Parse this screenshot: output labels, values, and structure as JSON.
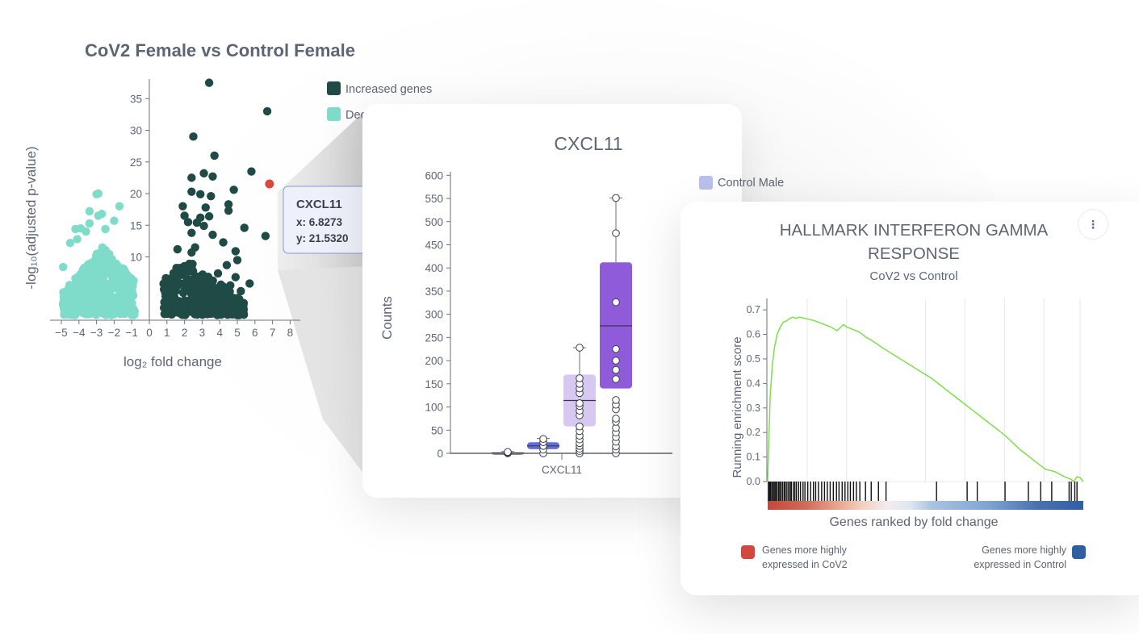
{
  "volcano": {
    "title": "CoV2 Female vs Control Female",
    "xlabel": "log₂ fold change",
    "ylabel": "-log₁₀(adjusted p-value)",
    "legend": [
      "Increased genes",
      "Decreased genes"
    ],
    "colors": {
      "increased": "#1f4a45",
      "decreased": "#7fdccb",
      "highlight": "#e0473c"
    },
    "xticks": [
      "−5",
      "−4",
      "−3",
      "−2",
      "−1",
      "0",
      "1",
      "2",
      "3",
      "4",
      "5",
      "6",
      "7",
      "8"
    ],
    "yticks": [
      "10",
      "15",
      "20",
      "25",
      "30",
      "35"
    ],
    "tooltip": {
      "gene": "CXCL11",
      "x_text": "x: 6.8273",
      "y_text": "y: 21.5320"
    },
    "highlight_point": {
      "x": 6.8273,
      "y": 21.532
    }
  },
  "boxplot": {
    "title": "CXCL11",
    "ylabel": "Counts",
    "xtick": "CXCL11",
    "legend_visible": [
      "Control Male"
    ],
    "yticks": [
      "0",
      "50",
      "100",
      "150",
      "200",
      "250",
      "300",
      "350",
      "400",
      "450",
      "500",
      "550",
      "600"
    ]
  },
  "gsea": {
    "title_line1": "HALLMARK INTERFERON GAMMA",
    "title_line2": "RESPONSE",
    "subtitle": "CoV2 vs Control",
    "ylabel": "Running enrichment score",
    "xlabel": "Genes ranked by fold change",
    "yticks": [
      "0.0",
      "0.1",
      "0.2",
      "0.3",
      "0.4",
      "0.5",
      "0.6",
      "0.7"
    ],
    "legend_left": [
      "Genes more highly",
      "expressed in CoV2"
    ],
    "legend_right": [
      "Genes more highly",
      "expressed in Control"
    ],
    "colors": {
      "cov2": "#d0483e",
      "control": "#2f5fa3",
      "curve": "#7be04a"
    },
    "menu_icon": "more-vertical-icon"
  },
  "chart_data": [
    {
      "type": "scatter",
      "title": "CoV2 Female vs Control Female",
      "xlabel": "log₂ fold change",
      "ylabel": "-log₁₀(adjusted p-value)",
      "xlim": [
        -5.5,
        8.5
      ],
      "ylim": [
        0,
        38
      ],
      "legend_position": "top-right",
      "series": [
        {
          "name": "Increased genes",
          "color": "#1f4a45",
          "points": [
            [
              3.4,
              37.5
            ],
            [
              6.7,
              33
            ],
            [
              2.5,
              29
            ],
            [
              3.7,
              26
            ],
            [
              5.8,
              23.5
            ],
            [
              2.4,
              22.5
            ],
            [
              3.1,
              23.2
            ],
            [
              3.6,
              22.7
            ],
            [
              4.8,
              20.6
            ],
            [
              2.4,
              20.3
            ],
            [
              2.9,
              19.9
            ],
            [
              6.6,
              13.3
            ],
            [
              3.5,
              19.6
            ],
            [
              3.2,
              17.8
            ],
            [
              4.5,
              17.3
            ],
            [
              2.9,
              16.2
            ],
            [
              3.4,
              16.4
            ],
            [
              2.0,
              16.5
            ],
            [
              1.9,
              18
            ],
            [
              4.5,
              18.3
            ],
            [
              2.2,
              15.5
            ],
            [
              2.7,
              15.4
            ],
            [
              3.1,
              14.9
            ],
            [
              3.6,
              13.5
            ],
            [
              5.4,
              14.6
            ],
            [
              2.4,
              13.8
            ],
            [
              4.2,
              12.3
            ],
            [
              2.6,
              11.5
            ],
            [
              1.6,
              11.2
            ],
            [
              4.9,
              10.9
            ],
            [
              2.4,
              10.7
            ],
            [
              5.0,
              9.5
            ],
            [
              4.4,
              8.7
            ],
            [
              3.9,
              7.4
            ],
            [
              4.9,
              6.8
            ],
            [
              5.7,
              5.8
            ],
            [
              4.6,
              5.5
            ],
            [
              5.2,
              4.6
            ],
            [
              3.3,
              4.9
            ],
            [
              1.5,
              6.3
            ],
            [
              1.1,
              5.6
            ],
            [
              0.9,
              4.4
            ]
          ]
        },
        {
          "name": "Decreased genes",
          "color": "#7fdccb",
          "points": [
            [
              -3.0,
              19.9
            ],
            [
              -2.9,
              20.0
            ],
            [
              -1.7,
              18
            ],
            [
              -3.4,
              17.2
            ],
            [
              -2.7,
              16.8
            ],
            [
              -2.9,
              16.5
            ],
            [
              -3.4,
              15.3
            ],
            [
              -4.2,
              14.4
            ],
            [
              -3.9,
              14.5
            ],
            [
              -2.0,
              15.7
            ],
            [
              -3.6,
              14.0
            ],
            [
              -2.5,
              14.4
            ],
            [
              -4.9,
              8.4
            ],
            [
              -1.2,
              6.5
            ],
            [
              -1.0,
              4.7
            ],
            [
              -4.1,
              12.8
            ],
            [
              -4.5,
              12.2
            ]
          ]
        }
      ],
      "highlight": {
        "label": "CXCL11",
        "x": 6.8273,
        "y": 21.532
      }
    },
    {
      "type": "box",
      "title": "CXCL11",
      "ylabel": "Counts",
      "ylim": [
        0,
        600
      ],
      "category": "CXCL11",
      "legend_visible": [
        "Control Male"
      ],
      "groups": [
        {
          "color": "#7a7a7a",
          "min": 0,
          "q1": 0,
          "median": 1,
          "q3": 2,
          "max": 4,
          "points": [
            0,
            1,
            2,
            3
          ]
        },
        {
          "color": "#5b67d6",
          "min": 0,
          "q1": 9,
          "median": 16,
          "q3": 24,
          "max": 32,
          "points": [
            0,
            8,
            16,
            24,
            31
          ]
        },
        {
          "color": "#c9b6ec",
          "min": 0,
          "q1": 58,
          "median": 114,
          "q3": 170,
          "max": 228,
          "points": [
            0,
            5,
            10,
            16,
            22,
            30,
            38,
            48,
            58,
            82,
            92,
            102,
            108,
            130,
            140,
            150,
            162,
            228
          ]
        },
        {
          "color": "#8a52d8",
          "min": 0,
          "q1": 140,
          "median": 275,
          "q3": 412,
          "max": 551,
          "points": [
            0,
            8,
            15,
            25,
            35,
            45,
            55,
            68,
            75,
            95,
            105,
            115,
            160,
            180,
            200,
            225,
            326,
            475,
            551
          ]
        }
      ]
    },
    {
      "type": "line",
      "title": "HALLMARK INTERFERON GAMMA RESPONSE",
      "subtitle": "CoV2 vs Control",
      "xlabel": "Genes ranked by fold change",
      "ylabel": "Running enrichment score",
      "ylim": [
        0,
        0.73
      ],
      "x_range": [
        0,
        1
      ],
      "series": [
        {
          "name": "",
          "color": "#7be04a",
          "x": [
            0,
            0.003,
            0.008,
            0.015,
            0.022,
            0.03,
            0.04,
            0.05,
            0.06,
            0.07,
            0.08,
            0.09,
            0.1,
            0.12,
            0.15,
            0.18,
            0.2,
            0.22,
            0.24,
            0.25,
            0.27,
            0.29,
            0.31,
            0.33,
            0.37,
            0.42,
            0.47,
            0.52,
            0.55,
            0.6,
            0.65,
            0.7,
            0.75,
            0.8,
            0.85,
            0.88,
            0.91,
            0.94,
            0.96,
            0.97,
            0.98,
            0.99,
            1.0
          ],
          "y": [
            0.0,
            0.14,
            0.35,
            0.48,
            0.55,
            0.6,
            0.63,
            0.65,
            0.655,
            0.665,
            0.67,
            0.665,
            0.67,
            0.665,
            0.655,
            0.64,
            0.63,
            0.615,
            0.64,
            0.63,
            0.62,
            0.61,
            0.59,
            0.575,
            0.54,
            0.5,
            0.46,
            0.42,
            0.39,
            0.34,
            0.29,
            0.24,
            0.19,
            0.13,
            0.08,
            0.05,
            0.04,
            0.02,
            0.01,
            0.0,
            0.02,
            0.015,
            0.0
          ]
        }
      ],
      "hits": [
        0.002,
        0.006,
        0.009,
        0.013,
        0.017,
        0.021,
        0.025,
        0.029,
        0.034,
        0.038,
        0.042,
        0.047,
        0.052,
        0.056,
        0.061,
        0.066,
        0.071,
        0.075,
        0.081,
        0.086,
        0.091,
        0.098,
        0.104,
        0.112,
        0.118,
        0.127,
        0.136,
        0.145,
        0.152,
        0.161,
        0.171,
        0.18,
        0.189,
        0.198,
        0.208,
        0.218,
        0.226,
        0.236,
        0.245,
        0.254,
        0.262,
        0.272,
        0.281,
        0.292,
        0.31,
        0.328,
        0.351,
        0.375,
        0.535,
        0.632,
        0.664,
        0.752,
        0.826,
        0.865,
        0.9,
        0.955,
        0.962,
        0.973,
        0.98
      ]
    }
  ]
}
